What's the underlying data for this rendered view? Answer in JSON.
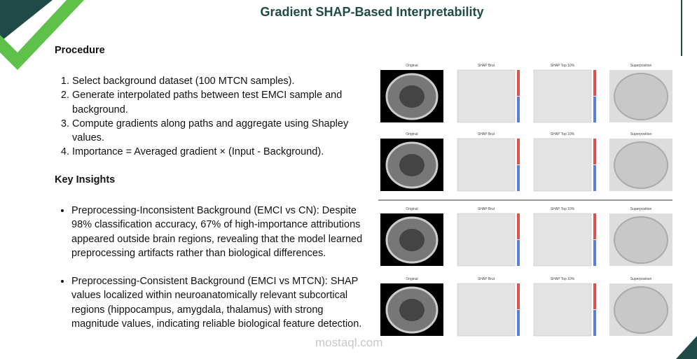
{
  "header": {
    "title": "Gradient SHAP-Based Interpretability"
  },
  "procedure": {
    "heading": "Procedure",
    "steps": [
      "Select background dataset (100 MTCN samples).",
      "Generate interpolated paths between test EMCI sample and background.",
      "Compute gradients along paths and aggregate using Shapley values.",
      "Importance = Averaged gradient × (Input - Background)."
    ]
  },
  "insights": {
    "heading": "Key Insights",
    "items": [
      "Preprocessing-Inconsistent Background (EMCI vs CN): Despite 98% classification accuracy, 67% of high-importance attributions appeared outside brain regions, revealing that the model learned preprocessing artifacts rather than biological differences.",
      "Preprocessing-Consistent Background (EMCI vs MTCN): SHAP values localized within neuroanatomically relevant subcortical regions (hippocampus, amygdala, thalamus) with strong magnitude values, indicating reliable biological feature detection."
    ]
  },
  "figure": {
    "columns": [
      "Original",
      "SHAP Brut",
      "SHAP Top 10%",
      "Superposition"
    ]
  },
  "watermark": "mostaql.com"
}
